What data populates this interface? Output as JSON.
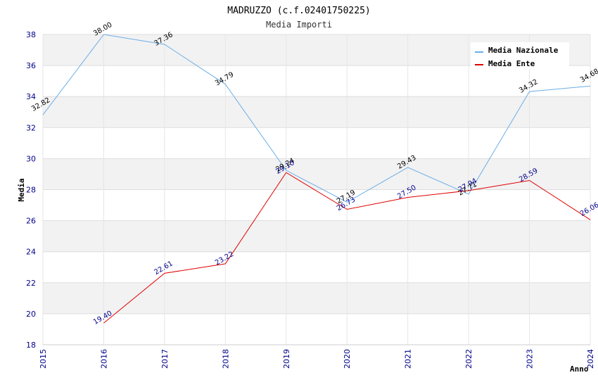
{
  "chart_data": {
    "type": "line",
    "title": "MADRUZZO (c.f.02401750225)",
    "subtitle": "Media Importi",
    "xlabel": "Anno",
    "ylabel": "Media",
    "ylim": [
      18,
      38
    ],
    "yticks": [
      "18",
      "20",
      "22",
      "24",
      "26",
      "28",
      "30",
      "32",
      "34",
      "36",
      "38"
    ],
    "x": [
      "2015",
      "2016",
      "2017",
      "2018",
      "2019",
      "2020",
      "2021",
      "2022",
      "2023",
      "2024"
    ],
    "grid": true,
    "legend_position": "top-right",
    "series": [
      {
        "name": "Media Nazionale",
        "color": "#6aaee8",
        "label_color": "#000000",
        "values": [
          32.82,
          38.0,
          37.36,
          34.79,
          29.24,
          27.19,
          29.43,
          27.71,
          34.32,
          34.68
        ],
        "labels": [
          "32.82",
          "38.00",
          "37.36",
          "34.79",
          "29.24",
          "27.19",
          "29.43",
          "27.71",
          "34.32",
          "34.68"
        ]
      },
      {
        "name": "Media Ente",
        "color": "#e00000",
        "label_color": "#00008b",
        "values": [
          null,
          19.4,
          22.61,
          23.22,
          29.1,
          26.73,
          27.5,
          27.94,
          28.59,
          26.06
        ],
        "labels": [
          "",
          "19.40",
          "22.61",
          "23.22",
          "29.10",
          "26.73",
          "27.50",
          "27.94",
          "28.59",
          "26.06"
        ]
      }
    ]
  }
}
